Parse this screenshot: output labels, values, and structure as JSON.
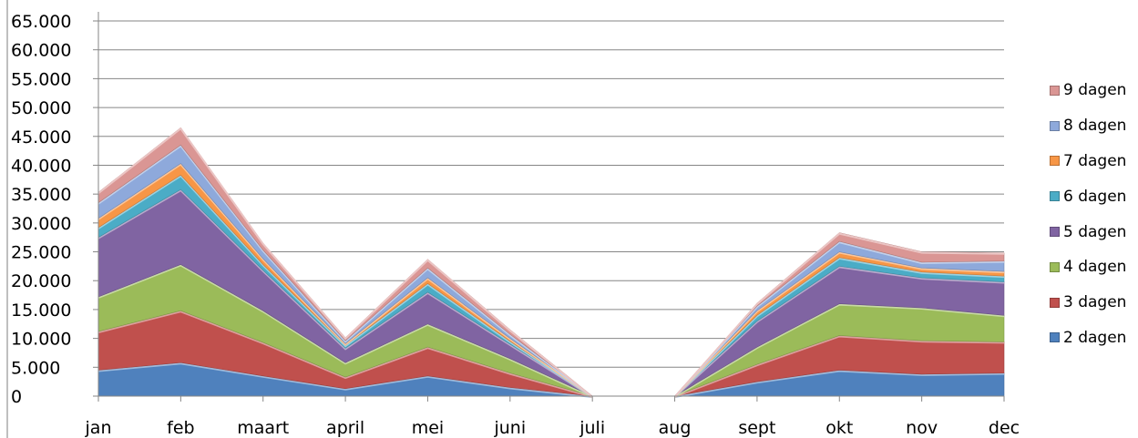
{
  "chart_data": {
    "type": "area",
    "stacked": true,
    "categories": [
      "jan",
      "feb",
      "maart",
      "april",
      "mei",
      "juni",
      "juli",
      "aug",
      "sept",
      "okt",
      "nov",
      "dec"
    ],
    "ylim": [
      0,
      65000
    ],
    "yticks": [
      "0",
      "5.000",
      "10.000",
      "15.000",
      "20.000",
      "25.000",
      "30.000",
      "35.000",
      "40.000",
      "45.000",
      "50.000",
      "55.000",
      "60.000",
      "65.000"
    ],
    "grid": true,
    "legend_position": "right",
    "series": [
      {
        "name": "2 dagen",
        "color": "#4F81BD",
        "values": [
          4500,
          5800,
          3500,
          1300,
          3500,
          1500,
          0,
          0,
          2500,
          4500,
          3800,
          4000
        ]
      },
      {
        "name": "3 dagen",
        "color": "#C0504D",
        "values": [
          6700,
          9000,
          5800,
          2000,
          5000,
          2500,
          0,
          0,
          3000,
          6000,
          5800,
          5400
        ]
      },
      {
        "name": "4 dagen",
        "color": "#9BBB59",
        "values": [
          6000,
          8000,
          5500,
          2500,
          4000,
          2500,
          0,
          0,
          3000,
          5500,
          5700,
          4600
        ]
      },
      {
        "name": "5 dagen",
        "color": "#8064A2",
        "values": [
          10300,
          13000,
          7000,
          2500,
          5500,
          2500,
          0,
          0,
          4500,
          6500,
          5200,
          5800
        ]
      },
      {
        "name": "6 dagen",
        "color": "#4BACC6",
        "values": [
          1700,
          2500,
          1000,
          500,
          1500,
          500,
          0,
          0,
          1000,
          1500,
          1000,
          1000
        ]
      },
      {
        "name": "7 dagen",
        "color": "#F79646",
        "values": [
          1600,
          2000,
          1000,
          300,
          1000,
          500,
          0,
          0,
          800,
          1000,
          700,
          800
        ]
      },
      {
        "name": "8 dagen",
        "color": "#8EA9DB",
        "values": [
          2700,
          3200,
          1500,
          500,
          1700,
          700,
          0,
          0,
          800,
          1800,
          1000,
          1800
        ]
      },
      {
        "name": "9 dagen",
        "color": "#DA9694",
        "values": [
          1800,
          3000,
          1200,
          500,
          1500,
          800,
          0,
          0,
          500,
          1500,
          1800,
          1400
        ]
      }
    ]
  }
}
